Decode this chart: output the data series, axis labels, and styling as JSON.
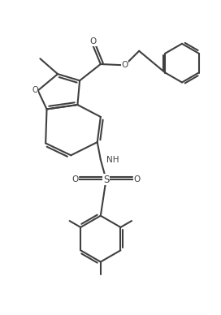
{
  "background_color": "#ffffff",
  "line_color": "#404040",
  "line_width": 1.5,
  "fig_width": 2.72,
  "fig_height": 3.88,
  "dpi": 100,
  "xlim": [
    0,
    10
  ],
  "ylim": [
    0,
    13.7
  ]
}
